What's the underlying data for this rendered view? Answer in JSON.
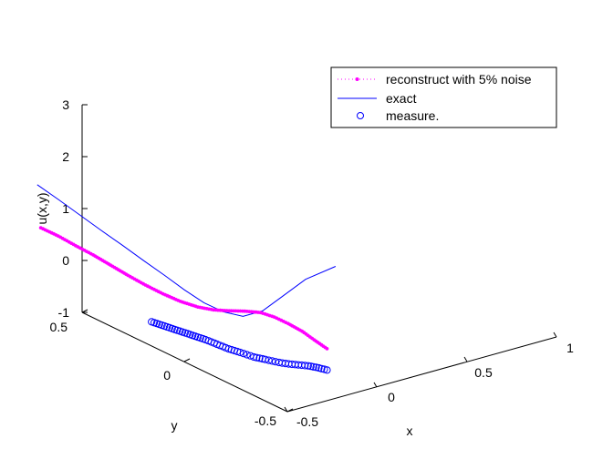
{
  "chart_data": {
    "type": "line3d",
    "title": "",
    "xlabel": "x",
    "ylabel": "y",
    "zlabel": "u(x,y)",
    "xlim": [
      -0.5,
      1
    ],
    "ylim": [
      -0.5,
      0.5
    ],
    "zlim": [
      -1,
      3
    ],
    "x_ticks": [
      "-0.5",
      "0",
      "0.5",
      "1"
    ],
    "y_ticks": [
      "-0.5",
      "0",
      "0.5"
    ],
    "z_ticks": [
      "-1",
      "0",
      "1",
      "2",
      "3"
    ],
    "legend_position": "top-right",
    "series": [
      {
        "name": "reconstruct with 5% noise",
        "style": "dotted-dot-marker",
        "color": "#FF00FF",
        "x": [
          0.02,
          0.06,
          0.1,
          0.14,
          0.18,
          0.22,
          0.26,
          0.3,
          0.34,
          0.38,
          0.41,
          0.44,
          0.47,
          0.5,
          0.52,
          0.54,
          0.56,
          0.57,
          0.585
        ],
        "y": [
          0.5,
          0.45,
          0.4,
          0.35,
          0.3,
          0.25,
          0.2,
          0.15,
          0.1,
          0.05,
          0.0,
          -0.05,
          -0.1,
          -0.15,
          -0.2,
          -0.25,
          -0.3,
          -0.35,
          -0.4
        ],
        "z": [
          0.85,
          0.75,
          0.62,
          0.5,
          0.36,
          0.22,
          0.09,
          -0.02,
          -0.11,
          -0.16,
          -0.15,
          -0.1,
          -0.04,
          0.0,
          -0.01,
          -0.06,
          -0.13,
          -0.21,
          -0.3
        ]
      },
      {
        "name": "exact",
        "style": "solid",
        "color": "#0000FF",
        "x": [
          0.0,
          0.05,
          0.1,
          0.15,
          0.2,
          0.25,
          0.3,
          0.34,
          0.38,
          0.42,
          0.46,
          0.5,
          0.54,
          0.58,
          0.61
        ],
        "y": [
          0.5,
          0.44,
          0.38,
          0.32,
          0.26,
          0.2,
          0.14,
          0.08,
          0.02,
          -0.04,
          -0.1,
          -0.16,
          -0.22,
          -0.3,
          -0.42
        ],
        "z": [
          1.7,
          1.48,
          1.25,
          1.02,
          0.8,
          0.57,
          0.35,
          0.15,
          -0.02,
          -0.12,
          -0.13,
          0.05,
          0.4,
          0.85,
          1.3
        ]
      },
      {
        "name": "measure.",
        "style": "circle-markers",
        "color": "#0000FF",
        "x": [
          0.18,
          0.2,
          0.22,
          0.24,
          0.26,
          0.28,
          0.3,
          0.32,
          0.35,
          0.38,
          0.41,
          0.44,
          0.47,
          0.5,
          0.52,
          0.54,
          0.56,
          0.57,
          0.585
        ],
        "y": [
          0.1,
          0.08,
          0.06,
          0.04,
          0.02,
          0.0,
          -0.02,
          -0.04,
          -0.07,
          -0.1,
          -0.13,
          -0.17,
          -0.2,
          -0.24,
          -0.27,
          -0.3,
          -0.33,
          -0.36,
          -0.4
        ],
        "z": [
          -0.35,
          -0.38,
          -0.41,
          -0.44,
          -0.47,
          -0.5,
          -0.53,
          -0.56,
          -0.62,
          -0.68,
          -0.72,
          -0.76,
          -0.78,
          -0.79,
          -0.78,
          -0.76,
          -0.74,
          -0.72,
          -0.71
        ]
      }
    ]
  }
}
